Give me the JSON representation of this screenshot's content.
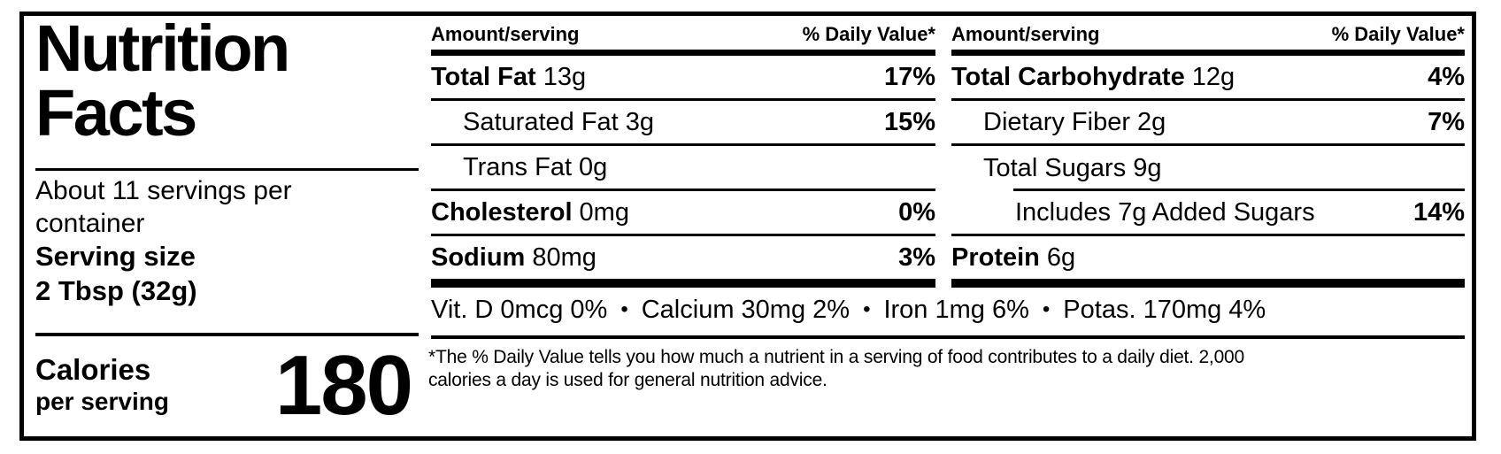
{
  "panel": {
    "title_line1": "Nutrition",
    "title_line2": "Facts",
    "servings_per_container": "About 11 servings per container",
    "serving_size_label": "Serving size",
    "serving_size_value": "2 Tbsp (32g)",
    "calories_label": "Calories",
    "calories_sublabel": "per serving",
    "calories_value": "180"
  },
  "column_header": {
    "amount_label": "Amount/serving",
    "dv_label": "% Daily Value*"
  },
  "columns": [
    {
      "rows": [
        {
          "name": "Total Fat",
          "amount": "13g",
          "dv": "17%"
        },
        {
          "name": "Saturated Fat",
          "amount": "3g",
          "dv": "15%"
        },
        {
          "name": "Trans Fat",
          "amount": "0g",
          "dv": ""
        },
        {
          "name": "Cholesterol",
          "amount": "0mg",
          "dv": "0%"
        },
        {
          "name": "Sodium",
          "amount": "80mg",
          "dv": "3%"
        }
      ]
    },
    {
      "rows": [
        {
          "name": "Total Carbohydrate",
          "amount": "12g",
          "dv": "4%"
        },
        {
          "name": "Dietary Fiber",
          "amount": "2g",
          "dv": "7%"
        },
        {
          "name": "Total Sugars",
          "amount": "9g",
          "dv": ""
        },
        {
          "name": "Includes 7g Added Sugars",
          "amount": "",
          "dv": "14%"
        },
        {
          "name": "Protein",
          "amount": "6g",
          "dv": ""
        }
      ]
    }
  ],
  "micronutrients": {
    "separator": "•",
    "items": [
      "Vit. D 0mcg 0%",
      "Calcium 30mg 2%",
      "Iron 1mg 6%",
      "Potas. 170mg 4%"
    ]
  },
  "footnote": {
    "line1": "*The % Daily Value tells you how much a nutrient in a serving of food contributes to a daily diet. 2,000",
    "line2": "calories a day is used for general nutrition advice."
  },
  "colors": {
    "ink": "#000000",
    "background": "#ffffff"
  }
}
